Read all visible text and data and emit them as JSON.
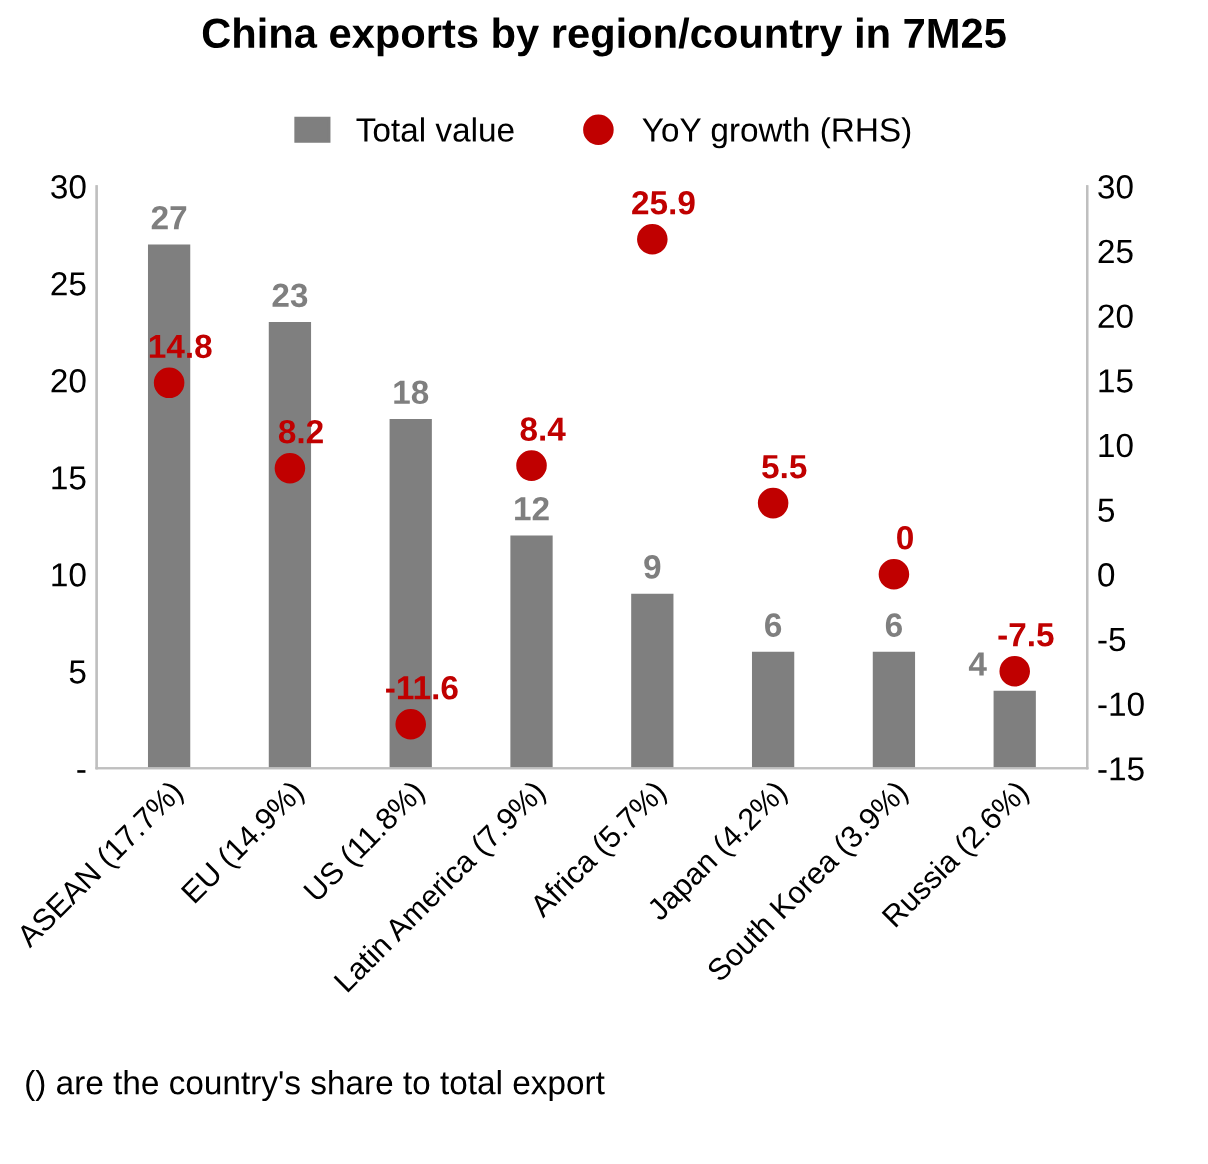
{
  "chart_data": {
    "type": "bar",
    "title": "China exports by region/country in 7M25",
    "categories": [
      "ASEAN (17.7%)",
      "EU (14.9%)",
      "US (11.8%)",
      "Latin America (7.9%)",
      "Africa (5.7%)",
      "Japan (4.2%)",
      "South Korea (3.9%)",
      "Russia (2.6%)"
    ],
    "series": [
      {
        "name": "Total value",
        "color": "#7f7f7f",
        "values": [
          27,
          23,
          18,
          12,
          9,
          6,
          6,
          4
        ]
      },
      {
        "name": "YoY growth (RHS)",
        "type": "scatter",
        "axis": "y2",
        "marker": "circle",
        "color": "#c00000",
        "values": [
          14.8,
          8.2,
          -11.6,
          8.4,
          25.9,
          5.5,
          0,
          -7.5
        ]
      }
    ],
    "ylim": [
      0,
      30
    ],
    "yticks": [
      {
        "value": 0,
        "label": "-"
      },
      5,
      10,
      15,
      20,
      25,
      30
    ],
    "y2lim": [
      -15,
      30
    ],
    "y2ticks": [
      -15,
      -10,
      -5,
      0,
      5,
      10,
      15,
      20,
      25,
      30
    ],
    "data_labels": true,
    "legend": "top",
    "grid": false,
    "annotations": [
      "() are the country's share to total export"
    ]
  }
}
